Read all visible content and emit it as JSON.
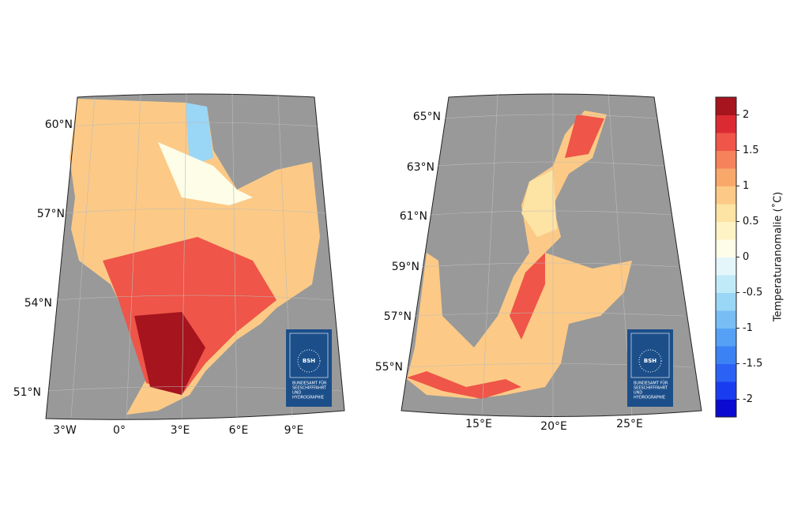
{
  "left_map": {
    "lat_labels": [
      "60°N",
      "57°N",
      "54°N",
      "51°N"
    ],
    "lon_labels": [
      "3°W",
      "0°",
      "3°E",
      "6°E",
      "9°E"
    ]
  },
  "right_map": {
    "lat_labels": [
      "65°N",
      "63°N",
      "61°N",
      "59°N",
      "57°N",
      "55°N"
    ],
    "lon_labels": [
      "15°E",
      "20°E",
      "25°E"
    ]
  },
  "logo": {
    "mark": "BSH",
    "lines": [
      "BUNDESAMT FÜR",
      "SEESCHIFFFAHRT",
      "UND",
      "HYDROGRAPHIE"
    ]
  },
  "colorbar": {
    "label": "Temperaturanomalie (˚C)",
    "lim": [
      -2.25,
      2.25
    ],
    "ticks": [
      -2,
      -1.5,
      -1,
      -0.5,
      0,
      0.5,
      1,
      1.5,
      2
    ],
    "colors": [
      "#0a0ad0",
      "#1a3cf0",
      "#2b62f5",
      "#3c82f5",
      "#56a0f5",
      "#78bef5",
      "#9ad6f5",
      "#c0eaf8",
      "#e4f6fa",
      "#fdfde8",
      "#fef3c4",
      "#fde3a4",
      "#fcca86",
      "#f9a86b",
      "#f5825a",
      "#ef5548",
      "#dc2a33",
      "#a6141e"
    ]
  }
}
